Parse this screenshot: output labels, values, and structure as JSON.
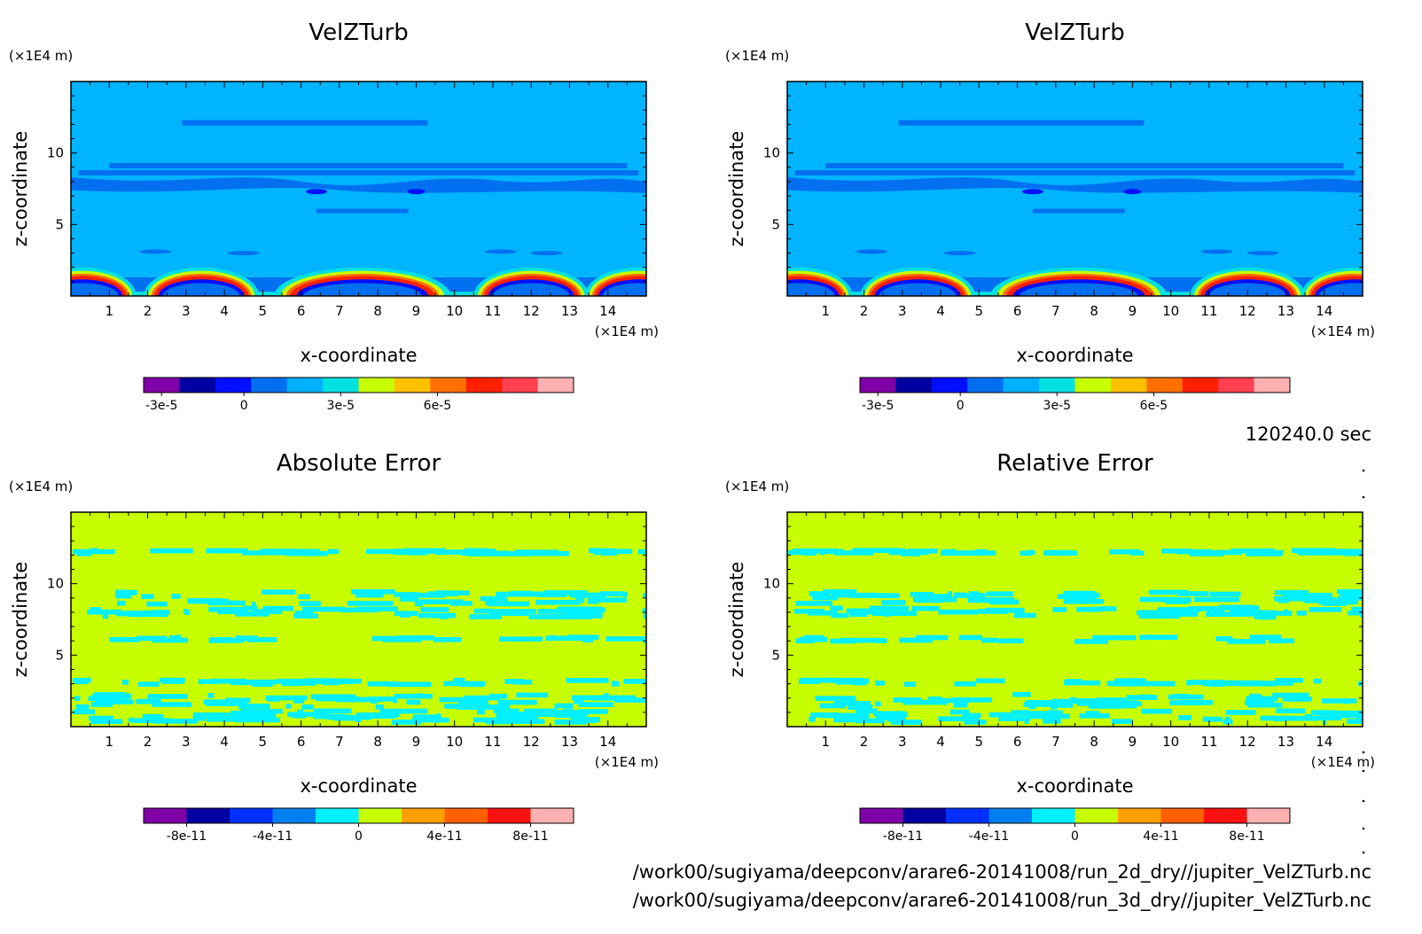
{
  "time_label": "120240.0 sec",
  "footer": {
    "files": [
      "/work00/sugiyama/deepconv/arare6-20141008/run_2d_dry//jupiter_VelZTurb.nc",
      "/work00/sugiyama/deepconv/arare6-20141008/run_3d_dry//jupiter_VelZTurb.nc"
    ]
  },
  "colors": {
    "level_colors": [
      "#8000a8",
      "#0000a0",
      "#0010ff",
      "#0070f0",
      "#00b0ff",
      "#00e0e0",
      "#c8ff00",
      "#ffc000",
      "#ff7000",
      "#ff2000",
      "#ff4050",
      "#ffb0b0"
    ],
    "error_colors": [
      "#8000a8",
      "#0000a0",
      "#0030ff",
      "#0080f0",
      "#00f0ff",
      "#c8ff00",
      "#ffa000",
      "#ff6000",
      "#ff1010",
      "#ffb0b0"
    ],
    "field_background": "#00b4ff",
    "error_background": "#c8ff00"
  },
  "chart_data": [
    {
      "type": "heatmap",
      "title": "VelZTurb",
      "xlabel": "x-coordinate",
      "ylabel": "z-coordinate",
      "x_unit": "(×1E4 m)",
      "y_unit": "(×1E4 m)",
      "xlim": [
        0,
        15
      ],
      "ylim": [
        0,
        15
      ],
      "xticks": [
        1,
        2,
        3,
        4,
        5,
        6,
        7,
        8,
        9,
        10,
        11,
        12,
        13,
        14
      ],
      "yticks": [
        5,
        10
      ],
      "colorbar_ticks": [
        "-3e-5",
        "0",
        "3e-5",
        "6e-5"
      ]
    },
    {
      "type": "heatmap",
      "title": "VelZTurb",
      "xlabel": "x-coordinate",
      "ylabel": "z-coordinate",
      "x_unit": "(×1E4 m)",
      "y_unit": "(×1E4 m)",
      "xlim": [
        0,
        15
      ],
      "ylim": [
        0,
        15
      ],
      "xticks": [
        1,
        2,
        3,
        4,
        5,
        6,
        7,
        8,
        9,
        10,
        11,
        12,
        13,
        14
      ],
      "yticks": [
        5,
        10
      ],
      "colorbar_ticks": [
        "-3e-5",
        "0",
        "3e-5",
        "6e-5"
      ]
    },
    {
      "type": "heatmap",
      "title": "Absolute Error",
      "xlabel": "x-coordinate",
      "ylabel": "z-coordinate",
      "x_unit": "(×1E4 m)",
      "y_unit": "(×1E4 m)",
      "xlim": [
        0,
        15
      ],
      "ylim": [
        0,
        15
      ],
      "xticks": [
        1,
        2,
        3,
        4,
        5,
        6,
        7,
        8,
        9,
        10,
        11,
        12,
        13,
        14
      ],
      "yticks": [
        5,
        10
      ],
      "colorbar_ticks": [
        "-8e-11",
        "-4e-11",
        "0",
        "4e-11",
        "8e-11"
      ]
    },
    {
      "type": "heatmap",
      "title": "Relative Error",
      "xlabel": "x-coordinate",
      "ylabel": "z-coordinate",
      "x_unit": "(×1E4 m)",
      "y_unit": "(×1E4 m)",
      "xlim": [
        0,
        15
      ],
      "ylim": [
        0,
        15
      ],
      "xticks": [
        1,
        2,
        3,
        4,
        5,
        6,
        7,
        8,
        9,
        10,
        11,
        12,
        13,
        14
      ],
      "yticks": [
        5,
        10
      ],
      "colorbar_ticks": [
        "-8e-11",
        "-4e-11",
        "0",
        "4e-11",
        "8e-11"
      ]
    }
  ]
}
